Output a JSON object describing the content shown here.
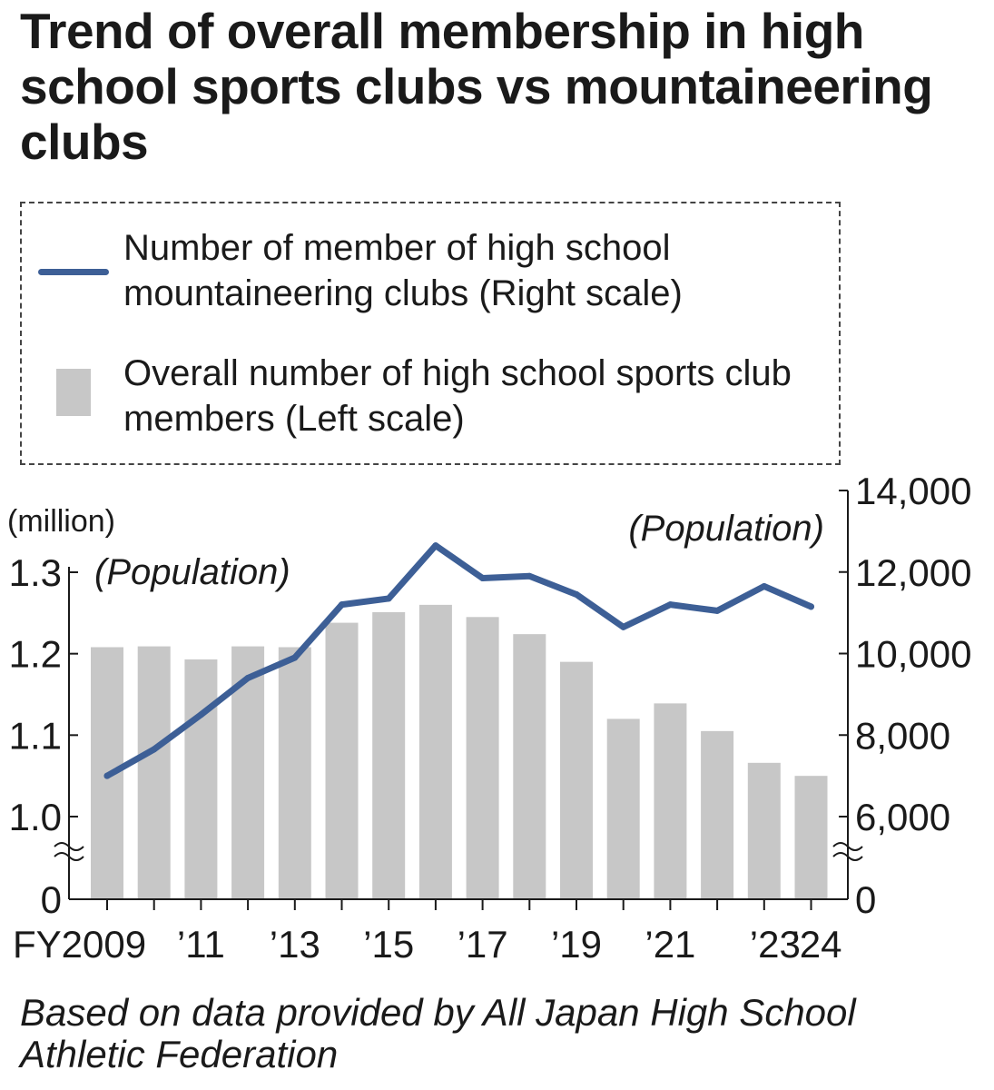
{
  "chart_data": {
    "type": "bar",
    "title": "Trend of overall membership in high school sports clubs vs mountaineering clubs",
    "x": [
      2009,
      2010,
      2011,
      2012,
      2013,
      2014,
      2015,
      2016,
      2017,
      2018,
      2019,
      2020,
      2021,
      2022,
      2023,
      2024
    ],
    "x_tick_labels": [
      {
        "x": 2009,
        "label": "FY2009"
      },
      {
        "x": 2011,
        "label": "’11"
      },
      {
        "x": 2013,
        "label": "’13"
      },
      {
        "x": 2015,
        "label": "’15"
      },
      {
        "x": 2017,
        "label": "’17"
      },
      {
        "x": 2019,
        "label": "’19"
      },
      {
        "x": 2021,
        "label": "’21"
      },
      {
        "x": 2023,
        "label": "’23"
      },
      {
        "x": 2024,
        "label": "’24"
      }
    ],
    "series": [
      {
        "name": "Overall number of high school sports club members (Left scale)",
        "type": "bar",
        "axis": "left",
        "color": "#c7c7c7",
        "values": [
          1.208,
          1.209,
          1.193,
          1.209,
          1.208,
          1.238,
          1.251,
          1.26,
          1.245,
          1.224,
          1.19,
          1.12,
          1.139,
          1.105,
          1.066,
          1.05
        ]
      },
      {
        "name": "Number of member of high school mountaineering clubs (Right scale)",
        "type": "line",
        "axis": "right",
        "color": "#3d5f96",
        "values": [
          7000,
          7650,
          8500,
          9400,
          9900,
          11200,
          11350,
          12650,
          11850,
          11900,
          11450,
          10650,
          11200,
          11050,
          11650,
          11150
        ]
      }
    ],
    "left_axis": {
      "unit_label": "(million)",
      "population_label": "(Population)",
      "ylim": [
        1.0,
        1.3
      ],
      "break_value": 0,
      "ticks": [
        "1.0",
        "1.1",
        "1.2",
        "1.3"
      ],
      "zero_label": "0"
    },
    "right_axis": {
      "population_label": "(Population)",
      "ylim": [
        6000,
        14000
      ],
      "break_value": 0,
      "ticks": [
        "6,000",
        "8,000",
        "10,000",
        "12,000",
        "14,000"
      ],
      "zero_label": "0"
    },
    "legend": {
      "placement": "top",
      "line_label": "Number of member of high school mountaineering clubs (Right scale)",
      "bar_label": "Overall number of high school sports club members (Left scale)"
    },
    "source": "Based on data provided by All Japan High School Athletic Federation",
    "grid": false
  }
}
